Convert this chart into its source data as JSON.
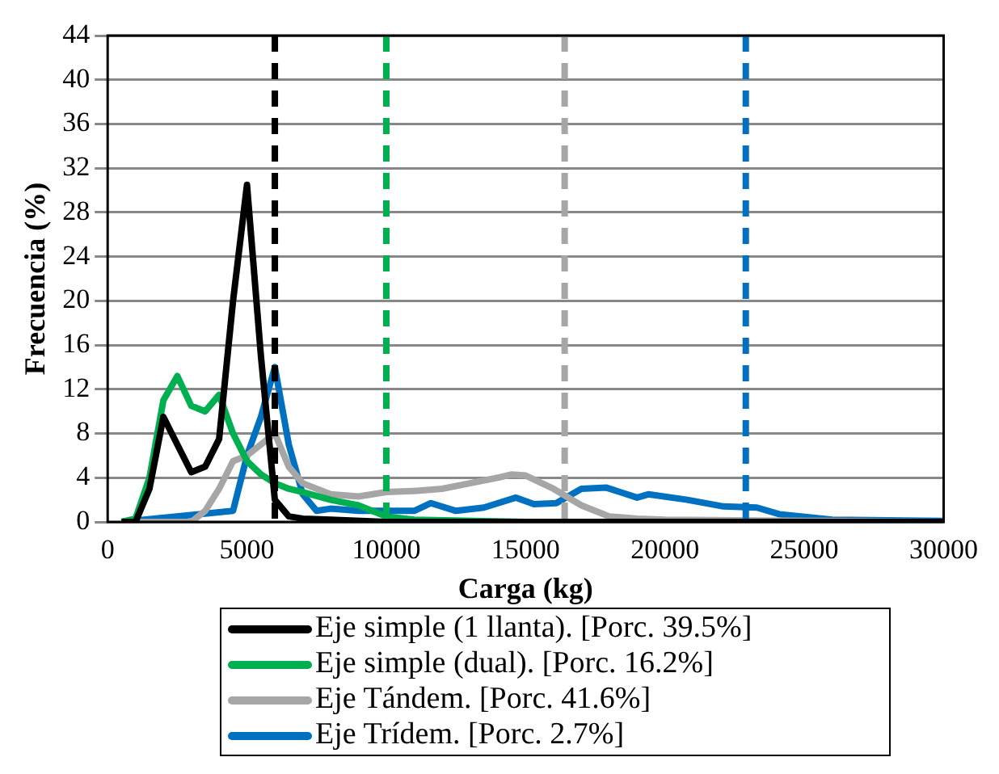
{
  "chart_data": {
    "type": "line",
    "xlabel": "Carga (kg)",
    "ylabel": "Frecuencia (%)",
    "xlim": [
      0,
      30000
    ],
    "xticks": [
      0,
      5000,
      10000,
      15000,
      20000,
      25000,
      30000
    ],
    "ylim": [
      0,
      44
    ],
    "yticks": [
      0,
      4,
      8,
      12,
      16,
      20,
      24,
      28,
      32,
      36,
      40,
      44
    ],
    "grid": "y",
    "legend": "bottom",
    "marker": "none",
    "line_style": "solid",
    "series": [
      {
        "name": "Eje simple (1 llanta). [Porc. 39.5%]",
        "color": "#000000",
        "x": [
          500,
          1000,
          1500,
          2000,
          2500,
          3000,
          3500,
          4000,
          4500,
          5000,
          5500,
          6000,
          6500,
          7000,
          8000,
          10000,
          15000,
          20000,
          25000,
          30000
        ],
        "values": [
          0,
          0,
          3,
          9.5,
          7,
          4.5,
          5,
          7.5,
          20,
          30.5,
          15,
          2,
          0.5,
          0.3,
          0.2,
          0,
          0,
          0,
          0,
          0
        ]
      },
      {
        "name": "Eje simple (dual). [Porc. 16.2%]",
        "color": "#00b050",
        "x": [
          500,
          1000,
          1500,
          2000,
          2500,
          3000,
          3500,
          4000,
          4500,
          5000,
          5500,
          6000,
          6500,
          7000,
          8000,
          9000,
          10000,
          11000,
          15000,
          20000
        ],
        "values": [
          0,
          0.3,
          4,
          11,
          13.2,
          10.5,
          10,
          11.5,
          8,
          5.5,
          4.3,
          3.5,
          3,
          2.7,
          2,
          1.5,
          0.5,
          0.2,
          0,
          0
        ]
      },
      {
        "name": "Eje Tándem. [Porc. 41.6%]",
        "color": "#a6a6a6",
        "x": [
          500,
          3000,
          3500,
          4000,
          4500,
          5000,
          5500,
          6000,
          6500,
          7000,
          7500,
          8000,
          9000,
          10000,
          11000,
          12000,
          13000,
          14000,
          14500,
          15000,
          16000,
          17000,
          18000,
          19000,
          20000,
          25000,
          30000
        ],
        "values": [
          0,
          0,
          1,
          3,
          5.5,
          6,
          7,
          8,
          5,
          3.5,
          3,
          2.5,
          2.3,
          2.7,
          2.8,
          3,
          3.5,
          4,
          4.3,
          4.2,
          3,
          1.5,
          0.5,
          0.3,
          0.2,
          0.1,
          0
        ]
      },
      {
        "name": "Eje Trídem. [Porc. 2.7%]",
        "color": "#0070c0",
        "x": [
          500,
          4500,
          5000,
          5500,
          6000,
          6500,
          7000,
          7500,
          8000,
          9000,
          10000,
          11000,
          11600,
          12500,
          13500,
          14650,
          15300,
          16100,
          17000,
          17900,
          19000,
          19400,
          20800,
          22100,
          23300,
          24100,
          26000,
          30000
        ],
        "values": [
          0,
          1,
          6,
          9.5,
          14,
          7,
          2.5,
          1,
          1.2,
          1,
          1,
          1,
          1.7,
          1,
          1.3,
          2.2,
          1.6,
          1.7,
          3,
          3.1,
          2.2,
          2.5,
          2,
          1.4,
          1.3,
          0.7,
          0.2,
          0.1
        ]
      }
    ],
    "ref_lines": [
      {
        "axis": "x",
        "value": 6000,
        "color": "#000000",
        "line_style": "dashed"
      },
      {
        "axis": "x",
        "value": 10000,
        "color": "#00b050",
        "line_style": "dashed"
      },
      {
        "axis": "x",
        "value": 16400,
        "color": "#a6a6a6",
        "line_style": "dashed"
      },
      {
        "axis": "x",
        "value": 22900,
        "color": "#0070c0",
        "line_style": "dashed"
      }
    ]
  }
}
